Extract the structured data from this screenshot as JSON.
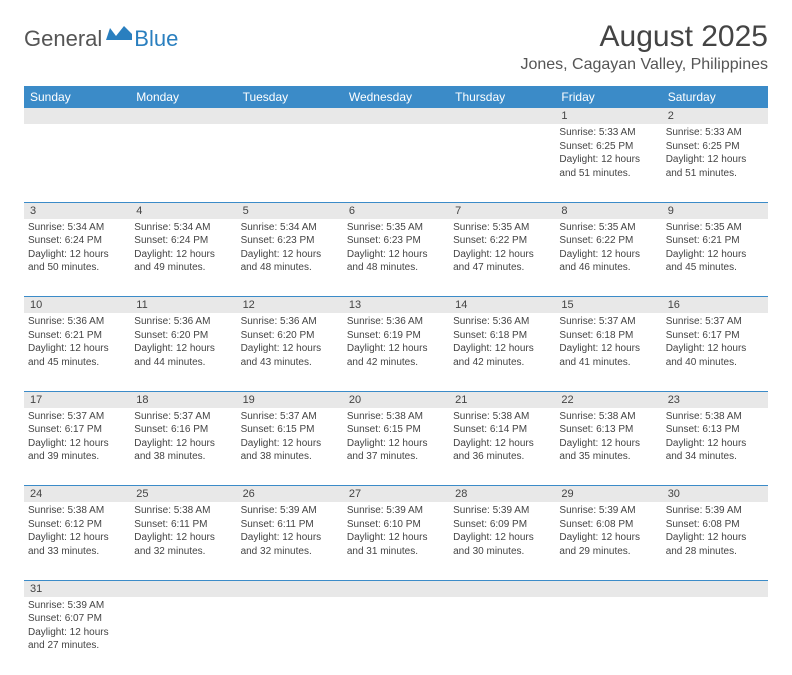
{
  "logo": {
    "general": "General",
    "blue": "Blue"
  },
  "title": "August 2025",
  "location": "Jones, Cagayan Valley, Philippines",
  "day_headers": [
    "Sunday",
    "Monday",
    "Tuesday",
    "Wednesday",
    "Thursday",
    "Friday",
    "Saturday"
  ],
  "colors": {
    "header_bg": "#3b8bc8",
    "header_fg": "#ffffff",
    "daynum_bg": "#e8e8e8",
    "border": "#3b8bc8",
    "logo_blue": "#2a7fbf",
    "text": "#444444"
  },
  "weeks": [
    [
      null,
      null,
      null,
      null,
      null,
      {
        "n": "1",
        "sr": "Sunrise: 5:33 AM",
        "ss": "Sunset: 6:25 PM",
        "d1": "Daylight: 12 hours",
        "d2": "and 51 minutes."
      },
      {
        "n": "2",
        "sr": "Sunrise: 5:33 AM",
        "ss": "Sunset: 6:25 PM",
        "d1": "Daylight: 12 hours",
        "d2": "and 51 minutes."
      }
    ],
    [
      {
        "n": "3",
        "sr": "Sunrise: 5:34 AM",
        "ss": "Sunset: 6:24 PM",
        "d1": "Daylight: 12 hours",
        "d2": "and 50 minutes."
      },
      {
        "n": "4",
        "sr": "Sunrise: 5:34 AM",
        "ss": "Sunset: 6:24 PM",
        "d1": "Daylight: 12 hours",
        "d2": "and 49 minutes."
      },
      {
        "n": "5",
        "sr": "Sunrise: 5:34 AM",
        "ss": "Sunset: 6:23 PM",
        "d1": "Daylight: 12 hours",
        "d2": "and 48 minutes."
      },
      {
        "n": "6",
        "sr": "Sunrise: 5:35 AM",
        "ss": "Sunset: 6:23 PM",
        "d1": "Daylight: 12 hours",
        "d2": "and 48 minutes."
      },
      {
        "n": "7",
        "sr": "Sunrise: 5:35 AM",
        "ss": "Sunset: 6:22 PM",
        "d1": "Daylight: 12 hours",
        "d2": "and 47 minutes."
      },
      {
        "n": "8",
        "sr": "Sunrise: 5:35 AM",
        "ss": "Sunset: 6:22 PM",
        "d1": "Daylight: 12 hours",
        "d2": "and 46 minutes."
      },
      {
        "n": "9",
        "sr": "Sunrise: 5:35 AM",
        "ss": "Sunset: 6:21 PM",
        "d1": "Daylight: 12 hours",
        "d2": "and 45 minutes."
      }
    ],
    [
      {
        "n": "10",
        "sr": "Sunrise: 5:36 AM",
        "ss": "Sunset: 6:21 PM",
        "d1": "Daylight: 12 hours",
        "d2": "and 45 minutes."
      },
      {
        "n": "11",
        "sr": "Sunrise: 5:36 AM",
        "ss": "Sunset: 6:20 PM",
        "d1": "Daylight: 12 hours",
        "d2": "and 44 minutes."
      },
      {
        "n": "12",
        "sr": "Sunrise: 5:36 AM",
        "ss": "Sunset: 6:20 PM",
        "d1": "Daylight: 12 hours",
        "d2": "and 43 minutes."
      },
      {
        "n": "13",
        "sr": "Sunrise: 5:36 AM",
        "ss": "Sunset: 6:19 PM",
        "d1": "Daylight: 12 hours",
        "d2": "and 42 minutes."
      },
      {
        "n": "14",
        "sr": "Sunrise: 5:36 AM",
        "ss": "Sunset: 6:18 PM",
        "d1": "Daylight: 12 hours",
        "d2": "and 42 minutes."
      },
      {
        "n": "15",
        "sr": "Sunrise: 5:37 AM",
        "ss": "Sunset: 6:18 PM",
        "d1": "Daylight: 12 hours",
        "d2": "and 41 minutes."
      },
      {
        "n": "16",
        "sr": "Sunrise: 5:37 AM",
        "ss": "Sunset: 6:17 PM",
        "d1": "Daylight: 12 hours",
        "d2": "and 40 minutes."
      }
    ],
    [
      {
        "n": "17",
        "sr": "Sunrise: 5:37 AM",
        "ss": "Sunset: 6:17 PM",
        "d1": "Daylight: 12 hours",
        "d2": "and 39 minutes."
      },
      {
        "n": "18",
        "sr": "Sunrise: 5:37 AM",
        "ss": "Sunset: 6:16 PM",
        "d1": "Daylight: 12 hours",
        "d2": "and 38 minutes."
      },
      {
        "n": "19",
        "sr": "Sunrise: 5:37 AM",
        "ss": "Sunset: 6:15 PM",
        "d1": "Daylight: 12 hours",
        "d2": "and 38 minutes."
      },
      {
        "n": "20",
        "sr": "Sunrise: 5:38 AM",
        "ss": "Sunset: 6:15 PM",
        "d1": "Daylight: 12 hours",
        "d2": "and 37 minutes."
      },
      {
        "n": "21",
        "sr": "Sunrise: 5:38 AM",
        "ss": "Sunset: 6:14 PM",
        "d1": "Daylight: 12 hours",
        "d2": "and 36 minutes."
      },
      {
        "n": "22",
        "sr": "Sunrise: 5:38 AM",
        "ss": "Sunset: 6:13 PM",
        "d1": "Daylight: 12 hours",
        "d2": "and 35 minutes."
      },
      {
        "n": "23",
        "sr": "Sunrise: 5:38 AM",
        "ss": "Sunset: 6:13 PM",
        "d1": "Daylight: 12 hours",
        "d2": "and 34 minutes."
      }
    ],
    [
      {
        "n": "24",
        "sr": "Sunrise: 5:38 AM",
        "ss": "Sunset: 6:12 PM",
        "d1": "Daylight: 12 hours",
        "d2": "and 33 minutes."
      },
      {
        "n": "25",
        "sr": "Sunrise: 5:38 AM",
        "ss": "Sunset: 6:11 PM",
        "d1": "Daylight: 12 hours",
        "d2": "and 32 minutes."
      },
      {
        "n": "26",
        "sr": "Sunrise: 5:39 AM",
        "ss": "Sunset: 6:11 PM",
        "d1": "Daylight: 12 hours",
        "d2": "and 32 minutes."
      },
      {
        "n": "27",
        "sr": "Sunrise: 5:39 AM",
        "ss": "Sunset: 6:10 PM",
        "d1": "Daylight: 12 hours",
        "d2": "and 31 minutes."
      },
      {
        "n": "28",
        "sr": "Sunrise: 5:39 AM",
        "ss": "Sunset: 6:09 PM",
        "d1": "Daylight: 12 hours",
        "d2": "and 30 minutes."
      },
      {
        "n": "29",
        "sr": "Sunrise: 5:39 AM",
        "ss": "Sunset: 6:08 PM",
        "d1": "Daylight: 12 hours",
        "d2": "and 29 minutes."
      },
      {
        "n": "30",
        "sr": "Sunrise: 5:39 AM",
        "ss": "Sunset: 6:08 PM",
        "d1": "Daylight: 12 hours",
        "d2": "and 28 minutes."
      }
    ],
    [
      {
        "n": "31",
        "sr": "Sunrise: 5:39 AM",
        "ss": "Sunset: 6:07 PM",
        "d1": "Daylight: 12 hours",
        "d2": "and 27 minutes."
      },
      null,
      null,
      null,
      null,
      null,
      null
    ]
  ]
}
